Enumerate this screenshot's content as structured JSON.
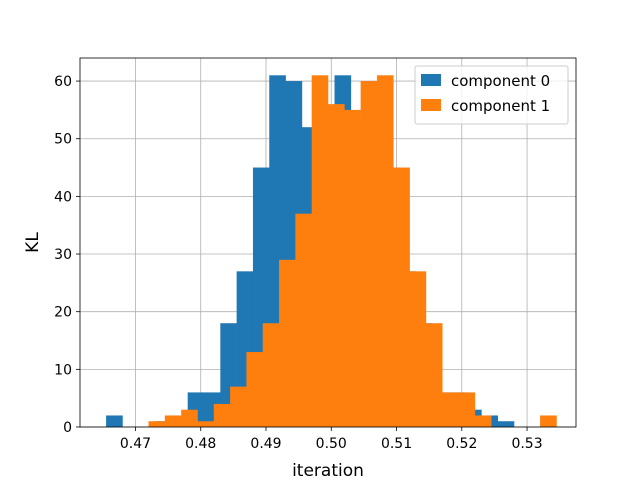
{
  "chart_data": {
    "type": "bar",
    "subtype": "histogram-overlay",
    "title": "",
    "xlabel": "iteration",
    "ylabel": "KL",
    "xlim": [
      0.4615,
      0.5375
    ],
    "ylim": [
      0,
      64
    ],
    "xticks": [
      0.47,
      0.48,
      0.49,
      0.5,
      0.51,
      0.52,
      0.53
    ],
    "yticks": [
      0,
      10,
      20,
      30,
      40,
      50,
      60
    ],
    "xtick_labels": [
      "0.47",
      "0.48",
      "0.49",
      "0.50",
      "0.51",
      "0.52",
      "0.53"
    ],
    "ytick_labels": [
      "0",
      "10",
      "20",
      "30",
      "40",
      "50",
      "60"
    ],
    "grid": true,
    "legend_position": "top-right",
    "series": [
      {
        "name": "component 0",
        "color": "#1f77b4",
        "bin_width": 0.0025,
        "bins": [
          {
            "x0": 0.4655,
            "count": 2
          },
          {
            "x0": 0.468,
            "count": 0
          },
          {
            "x0": 0.4705,
            "count": 0
          },
          {
            "x0": 0.473,
            "count": 1
          },
          {
            "x0": 0.4755,
            "count": 2
          },
          {
            "x0": 0.478,
            "count": 6
          },
          {
            "x0": 0.4805,
            "count": 6
          },
          {
            "x0": 0.483,
            "count": 18
          },
          {
            "x0": 0.4855,
            "count": 27
          },
          {
            "x0": 0.488,
            "count": 45
          },
          {
            "x0": 0.4905,
            "count": 61
          },
          {
            "x0": 0.493,
            "count": 60
          },
          {
            "x0": 0.4955,
            "count": 52
          },
          {
            "x0": 0.498,
            "count": 48
          },
          {
            "x0": 0.5005,
            "count": 61
          },
          {
            "x0": 0.503,
            "count": 52
          },
          {
            "x0": 0.5055,
            "count": 50
          },
          {
            "x0": 0.508,
            "count": 45
          },
          {
            "x0": 0.5105,
            "count": 27
          },
          {
            "x0": 0.513,
            "count": 18
          },
          {
            "x0": 0.5155,
            "count": 6
          },
          {
            "x0": 0.518,
            "count": 6
          },
          {
            "x0": 0.5205,
            "count": 3
          },
          {
            "x0": 0.523,
            "count": 2
          },
          {
            "x0": 0.5255,
            "count": 1
          }
        ]
      },
      {
        "name": "component 1",
        "color": "#ff7f0e",
        "bin_width": 0.0025,
        "bins": [
          {
            "x0": 0.472,
            "count": 1
          },
          {
            "x0": 0.4745,
            "count": 2
          },
          {
            "x0": 0.477,
            "count": 3
          },
          {
            "x0": 0.4795,
            "count": 1
          },
          {
            "x0": 0.482,
            "count": 4
          },
          {
            "x0": 0.4845,
            "count": 7
          },
          {
            "x0": 0.487,
            "count": 13
          },
          {
            "x0": 0.4895,
            "count": 18
          },
          {
            "x0": 0.492,
            "count": 29
          },
          {
            "x0": 0.4945,
            "count": 37
          },
          {
            "x0": 0.497,
            "count": 61
          },
          {
            "x0": 0.4995,
            "count": 56
          },
          {
            "x0": 0.502,
            "count": 55
          },
          {
            "x0": 0.5045,
            "count": 60
          },
          {
            "x0": 0.507,
            "count": 61
          },
          {
            "x0": 0.5095,
            "count": 45
          },
          {
            "x0": 0.512,
            "count": 27
          },
          {
            "x0": 0.5145,
            "count": 18
          },
          {
            "x0": 0.517,
            "count": 6
          },
          {
            "x0": 0.5195,
            "count": 6
          },
          {
            "x0": 0.522,
            "count": 2
          },
          {
            "x0": 0.5245,
            "count": 0
          },
          {
            "x0": 0.527,
            "count": 0
          },
          {
            "x0": 0.5295,
            "count": 0
          },
          {
            "x0": 0.532,
            "count": 2
          }
        ]
      }
    ]
  }
}
